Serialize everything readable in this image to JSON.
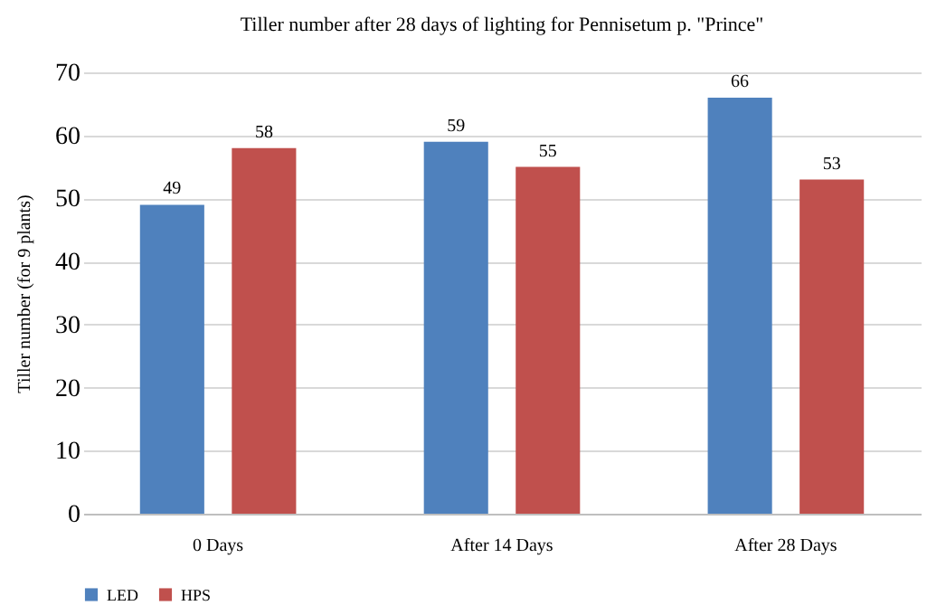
{
  "chart_data": {
    "type": "bar",
    "title": "Tiller number after 28 days of lighting for Pennisetum p. \"Prince\"",
    "ylabel": "Tiller number (for 9 plants)",
    "categories": [
      "0 Days",
      "After 14 Days",
      "After 28 Days"
    ],
    "series": [
      {
        "name": "LED",
        "color": "#4f81bd",
        "values": [
          49,
          59,
          66
        ]
      },
      {
        "name": "HPS",
        "color": "#c0504d",
        "values": [
          58,
          55,
          53
        ]
      }
    ],
    "ylim": [
      0,
      70
    ],
    "yticks": [
      0,
      10,
      20,
      30,
      40,
      50,
      60,
      70
    ],
    "grid": "y",
    "legend": "bottom",
    "data_labels": true
  }
}
